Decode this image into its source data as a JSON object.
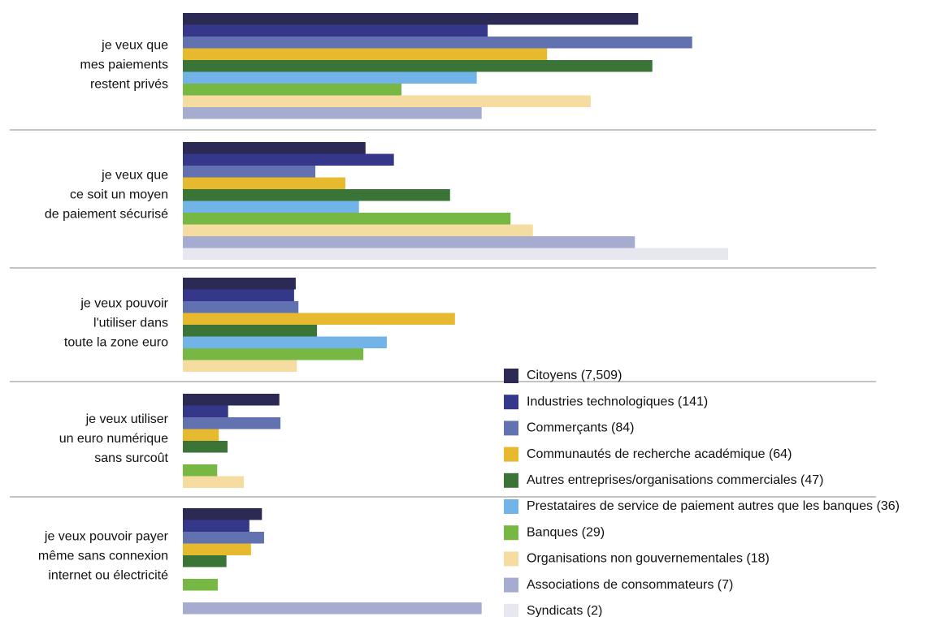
{
  "chart_data": {
    "type": "bar",
    "orientation": "horizontal",
    "categories": [
      [
        "je veux que",
        "mes paiements",
        "restent privés"
      ],
      [
        "je veux que",
        "ce soit un moyen",
        "de paiement sécurisé"
      ],
      [
        "je veux pouvoir",
        "l'utiliser dans",
        "toute la zone euro"
      ],
      [
        "je veux utiliser",
        "un euro numérique",
        "sans surcoût"
      ],
      [
        "je veux pouvoir payer",
        "même sans connexion",
        "internet ou électricité"
      ]
    ],
    "xlim": [
      0,
      100
    ],
    "series": [
      {
        "name": "Citoyens (7,509)",
        "color": "#2b2a55",
        "values": [
          83.5,
          33.5,
          20.7,
          17.7,
          14.5
        ]
      },
      {
        "name": "Industries technologiques (141)",
        "color": "#35378a",
        "values": [
          55.9,
          38.7,
          20.4,
          8.3,
          12.2
        ]
      },
      {
        "name": "Commerçants (84)",
        "color": "#6272b0",
        "values": [
          93.4,
          24.3,
          21.2,
          17.9,
          14.9
        ]
      },
      {
        "name": "Communautés de recherche académique (64)",
        "color": "#e6b92f",
        "values": [
          66.8,
          29.8,
          49.9,
          6.6,
          12.5
        ]
      },
      {
        "name": "Autres entreprises/organisations commerciales (47)",
        "color": "#3a7437",
        "values": [
          86.1,
          49.0,
          24.6,
          8.2,
          8.0
        ]
      },
      {
        "name": "Prestataires de service de paiement autres que les banques (36)",
        "color": "#72b4e8",
        "values": [
          53.9,
          32.3,
          37.4,
          0,
          0
        ]
      },
      {
        "name": "Banques (29)",
        "color": "#76b843",
        "values": [
          40.1,
          60.1,
          33.1,
          6.3,
          6.4
        ]
      },
      {
        "name": "Organisations non gouvernementales (18)",
        "color": "#f5dca0",
        "values": [
          74.8,
          64.2,
          20.9,
          11.2,
          0
        ]
      },
      {
        "name": "Associations de consommateurs (7)",
        "color": "#a6acd0",
        "values": [
          54.8,
          82.9,
          0,
          0,
          54.8
        ]
      },
      {
        "name": "Syndicats (2)",
        "color": "#e6e7ef",
        "values": [
          0,
          100,
          0,
          0,
          0
        ]
      }
    ]
  }
}
